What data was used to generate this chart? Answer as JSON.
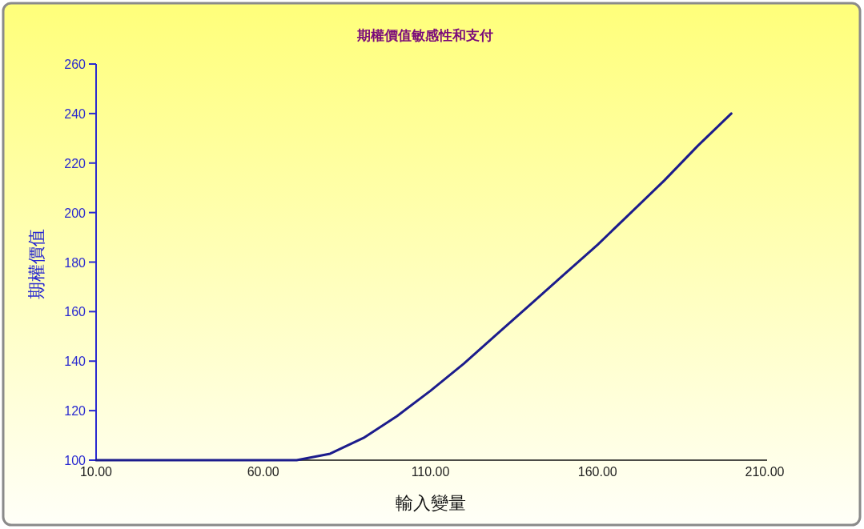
{
  "chart_data": {
    "type": "line",
    "title": "期權價值敏感性和支付",
    "xlabel": "輸入變量",
    "ylabel": "期權價值",
    "x": [
      10,
      20,
      30,
      40,
      50,
      60,
      70,
      80,
      90,
      100,
      110,
      120,
      130,
      140,
      150,
      160,
      170,
      180,
      190,
      200
    ],
    "series": [
      {
        "color": "#1c1c8c",
        "values": [
          100,
          100,
          100,
          100,
          100,
          100,
          100,
          102.6,
          109,
          117.8,
          128,
          139,
          151,
          163,
          175,
          187,
          200,
          213,
          227,
          240
        ]
      }
    ],
    "xlim": [
      10,
      210
    ],
    "ylim": [
      100,
      260
    ],
    "xticks": [
      {
        "value": 10,
        "label": "10.00"
      },
      {
        "value": 60,
        "label": "60.00"
      },
      {
        "value": 110,
        "label": "110.00"
      },
      {
        "value": 160,
        "label": "160.00"
      },
      {
        "value": 210,
        "label": "210.00"
      }
    ],
    "yticks": [
      100,
      120,
      140,
      160,
      180,
      200,
      220,
      240,
      260
    ],
    "grid": false,
    "marker": "none",
    "line_style": "solid"
  }
}
